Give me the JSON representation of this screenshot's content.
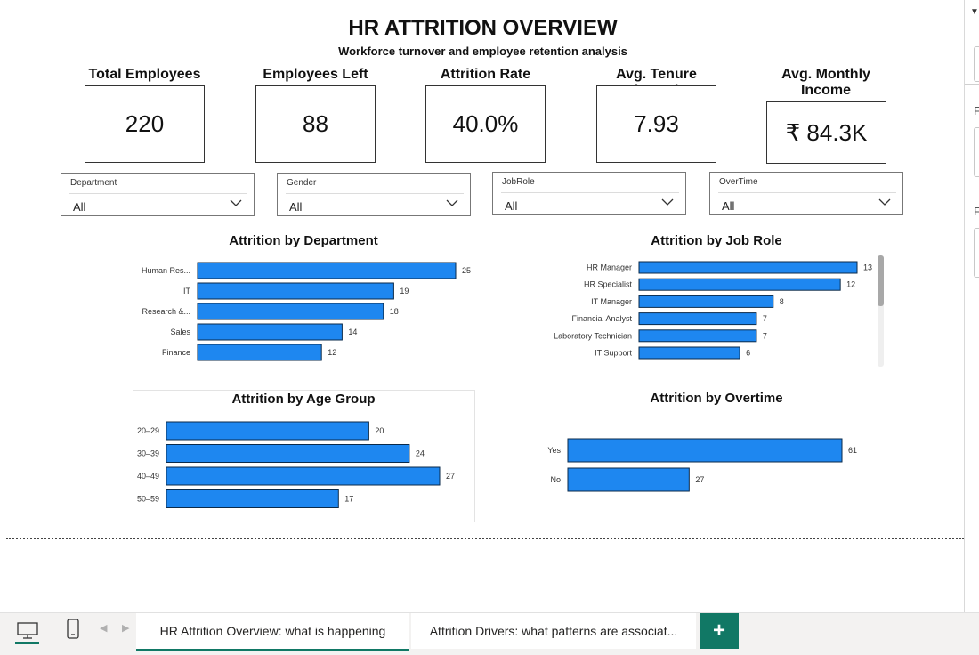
{
  "report": {
    "title": "HR ATTRITION OVERVIEW",
    "subtitle": "Workforce turnover and employee retention analysis"
  },
  "kpis": [
    {
      "label": "Total Employees",
      "value": "220"
    },
    {
      "label": "Employees Left",
      "value": "88"
    },
    {
      "label": "Attrition Rate",
      "value": "40.0%"
    },
    {
      "label": "Avg. Tenure (Years)",
      "value": "7.93"
    },
    {
      "label": "Avg. Monthly Income",
      "value": "₹ 84.3K"
    }
  ],
  "slicers": [
    {
      "label": "Department",
      "value": "All"
    },
    {
      "label": "Gender",
      "value": "All"
    },
    {
      "label": "JobRole",
      "value": "All"
    },
    {
      "label": "OverTime",
      "value": "All"
    }
  ],
  "right_pane": {
    "letter_1": "F",
    "letter_2": "F"
  },
  "colors": {
    "bar_fill": "#1e87f0",
    "bar_stroke": "#0a2a4a",
    "accent": "#117865"
  },
  "chart_data": [
    {
      "type": "bar",
      "orientation": "horizontal",
      "title": "Attrition by Department",
      "categories": [
        "Human Res...",
        "IT",
        "Research &...",
        "Sales",
        "Finance"
      ],
      "values": [
        25,
        19,
        18,
        14,
        12
      ],
      "xlim": [
        0,
        25
      ]
    },
    {
      "type": "bar",
      "orientation": "horizontal",
      "title": "Attrition by Job Role",
      "categories": [
        "HR Manager",
        "HR Specialist",
        "IT Manager",
        "Financial Analyst",
        "Laboratory Technician",
        "IT Support"
      ],
      "values": [
        13,
        12,
        8,
        7,
        7,
        6
      ],
      "xlim": [
        0,
        13
      ]
    },
    {
      "type": "bar",
      "orientation": "horizontal",
      "title": "Attrition by Age Group",
      "categories": [
        "20–29",
        "30–39",
        "40–49",
        "50–59"
      ],
      "values": [
        20,
        24,
        27,
        17
      ],
      "xlim": [
        0,
        27
      ]
    },
    {
      "type": "bar",
      "orientation": "horizontal",
      "title": "Attrition by Overtime",
      "categories": [
        "Yes",
        "No"
      ],
      "values": [
        61,
        27
      ],
      "xlim": [
        0,
        61
      ]
    }
  ],
  "tabs": {
    "active": "HR Attrition Overview: what is happening",
    "second": "Attrition Drivers: what patterns are associat...",
    "add_label": "+"
  },
  "icons": {
    "desktop": "desktop-view-icon",
    "phone": "mobile-view-icon",
    "prev": "chevron-left-icon",
    "next": "chevron-right-icon"
  }
}
